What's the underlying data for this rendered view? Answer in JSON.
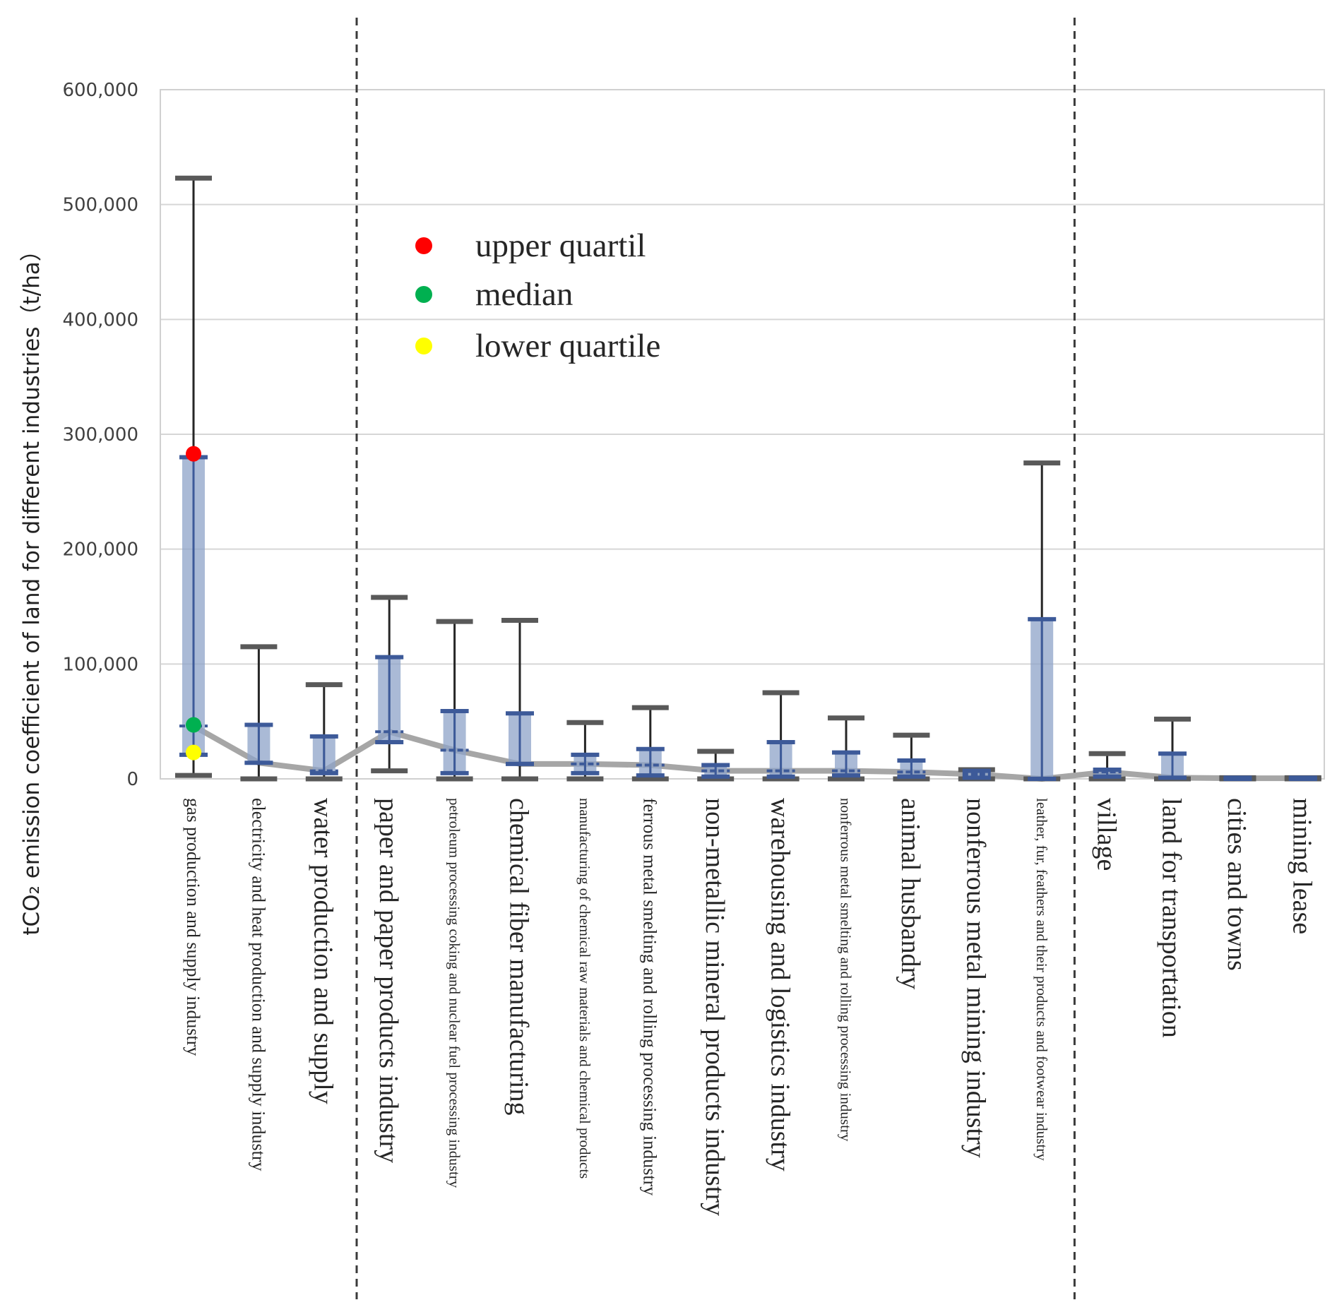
{
  "chart_data": {
    "type": "box-range",
    "title": "",
    "xlabel": "",
    "ylabel": "tCO₂ emission coefficient of land for different industries（t/ha）",
    "ylim": [
      0,
      600000
    ],
    "yticks": [
      0,
      100000,
      200000,
      300000,
      400000,
      500000,
      600000
    ],
    "ytick_labels": [
      "0",
      "100,000",
      "200,000",
      "300,000",
      "400,000",
      "500,000",
      "600,000"
    ],
    "grid": true,
    "legend": {
      "placement": "upper-middle",
      "items": [
        {
          "label": "upper quartil",
          "color": "#ff0000"
        },
        {
          "label": "median",
          "color": "#00b050"
        },
        {
          "label": "lower quartile",
          "color": "#ffff00"
        }
      ]
    },
    "group_separators_after": [
      3,
      14
    ],
    "categories": [
      {
        "label": "gas production and supply industry",
        "size": "s",
        "min": 3000,
        "lower_quartile": 21000,
        "median": 46000,
        "upper_quartile": 280000,
        "max": 523000
      },
      {
        "label": "electricity and heat production and supply industry",
        "size": "s",
        "min": 0,
        "lower_quartile": 14000,
        "median": 14000,
        "upper_quartile": 47000,
        "max": 115000
      },
      {
        "label": "water production and supply",
        "size": "l",
        "min": 0,
        "lower_quartile": 5000,
        "median": 7000,
        "upper_quartile": 37000,
        "max": 82000
      },
      {
        "label": "paper and paper products industry",
        "size": "l",
        "min": 7000,
        "lower_quartile": 32000,
        "median": 41000,
        "upper_quartile": 106000,
        "max": 158000
      },
      {
        "label": "petroleum processing coking and nuclear fuel processing industry",
        "size": "xs",
        "min": 0,
        "lower_quartile": 5000,
        "median": 25000,
        "upper_quartile": 59000,
        "max": 137000
      },
      {
        "label": "chemical fiber manufacturing",
        "size": "l",
        "min": 0,
        "lower_quartile": 13000,
        "median": 13000,
        "upper_quartile": 57000,
        "max": 138000
      },
      {
        "label": "manufacturing of chemical raw materials and chemical products",
        "size": "xs",
        "min": 0,
        "lower_quartile": 5000,
        "median": 13000,
        "upper_quartile": 21000,
        "max": 49000
      },
      {
        "label": "ferrous metal smelting and rolling processing industry",
        "size": "s",
        "min": 0,
        "lower_quartile": 3000,
        "median": 12000,
        "upper_quartile": 26000,
        "max": 62000
      },
      {
        "label": "non-metallic mineral products industry",
        "size": "l",
        "min": 0,
        "lower_quartile": 2000,
        "median": 7000,
        "upper_quartile": 12000,
        "max": 24000
      },
      {
        "label": "warehousing and logistics industry",
        "size": "l",
        "min": 0,
        "lower_quartile": 2000,
        "median": 7000,
        "upper_quartile": 32000,
        "max": 75000
      },
      {
        "label": "nonferrous metal smelting and rolling processing industry",
        "size": "xs",
        "min": 0,
        "lower_quartile": 3000,
        "median": 7000,
        "upper_quartile": 23000,
        "max": 53000
      },
      {
        "label": "animal husbandry",
        "size": "l",
        "min": 0,
        "lower_quartile": 2000,
        "median": 6000,
        "upper_quartile": 16000,
        "max": 38000
      },
      {
        "label": "nonferrous metal mining industry",
        "size": "l",
        "min": 0,
        "lower_quartile": 1000,
        "median": 4000,
        "upper_quartile": 7000,
        "max": 8000
      },
      {
        "label": "leather, fur, feathers and their products and footwear industry",
        "size": "xs",
        "min": 0,
        "lower_quartile": 0,
        "median": 0,
        "upper_quartile": 139000,
        "max": 275000
      },
      {
        "label": "village",
        "size": "l",
        "min": 0,
        "lower_quartile": 2000,
        "median": 6000,
        "upper_quartile": 8000,
        "max": 22000
      },
      {
        "label": "land for transportation",
        "size": "l",
        "min": 0,
        "lower_quartile": 1000,
        "median": 1000,
        "upper_quartile": 22000,
        "max": 52000
      },
      {
        "label": "cities and towns",
        "size": "l",
        "min": 0,
        "lower_quartile": 0,
        "median": 500,
        "upper_quartile": 1000,
        "max": 1000
      },
      {
        "label": "mining lease",
        "size": "l",
        "min": 0,
        "lower_quartile": 0,
        "median": 500,
        "upper_quartile": 1000,
        "max": 1000
      }
    ],
    "highlight_markers": {
      "category_index": 0,
      "upper_quartile": 283000,
      "median": 47000,
      "lower_quartile": 23000
    }
  }
}
